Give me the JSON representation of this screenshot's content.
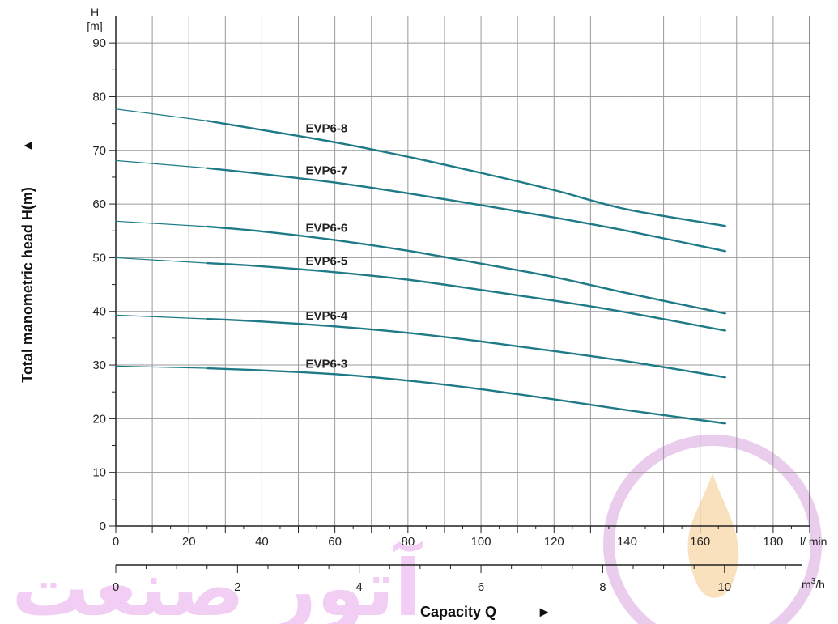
{
  "chart_data": {
    "type": "line",
    "ylabel": "Total manometric head H(m)",
    "ylabel_arrow": "▲",
    "y_unit_top": "H",
    "y_unit_bottom": "[m]",
    "xlabel": "Capacity Q",
    "xlabel_arrow": "►",
    "x_unit_primary": "l/ min",
    "x_unit_secondary_base": "m",
    "x_unit_secondary_exp": "3",
    "x_unit_secondary_tail": "/h",
    "xlim": [
      0,
      190
    ],
    "ylim": [
      0,
      95
    ],
    "x_ticks": [
      "0",
      "20",
      "40",
      "60",
      "80",
      "100",
      "120",
      "140",
      "160",
      "180"
    ],
    "x2_ticks": [
      "0",
      "2",
      "4",
      "6",
      "8",
      "10"
    ],
    "y_ticks": [
      "0",
      "10",
      "20",
      "30",
      "40",
      "50",
      "60",
      "70",
      "80",
      "90"
    ],
    "grid": true,
    "series_color": "#1e7a86",
    "series": [
      {
        "name": "EVP6-8",
        "x": [
          0,
          25,
          40,
          60,
          80,
          100,
          120,
          140,
          167
        ],
        "y": [
          77.7,
          75.5,
          73.8,
          71.5,
          68.8,
          65.8,
          62.6,
          59.0,
          55.9
        ]
      },
      {
        "name": "EVP6-7",
        "x": [
          0,
          25,
          40,
          60,
          80,
          100,
          120,
          140,
          167
        ],
        "y": [
          68.1,
          66.7,
          65.6,
          64.0,
          62.0,
          59.8,
          57.5,
          55.0,
          51.2
        ]
      },
      {
        "name": "EVP6-6",
        "x": [
          0,
          25,
          40,
          60,
          80,
          100,
          120,
          140,
          167
        ],
        "y": [
          56.8,
          55.8,
          54.9,
          53.3,
          51.3,
          48.9,
          46.4,
          43.4,
          39.6
        ]
      },
      {
        "name": "EVP6-5",
        "x": [
          0,
          25,
          40,
          60,
          80,
          100,
          120,
          140,
          167
        ],
        "y": [
          50.0,
          49.0,
          48.4,
          47.3,
          45.9,
          44.0,
          42.0,
          39.8,
          36.4
        ]
      },
      {
        "name": "EVP6-4",
        "x": [
          0,
          25,
          40,
          60,
          80,
          100,
          120,
          140,
          167
        ],
        "y": [
          39.3,
          38.6,
          38.1,
          37.2,
          36.0,
          34.4,
          32.6,
          30.7,
          27.7
        ]
      },
      {
        "name": "EVP6-3",
        "x": [
          0,
          25,
          40,
          60,
          80,
          100,
          120,
          140,
          167
        ],
        "y": [
          29.8,
          29.4,
          29.0,
          28.3,
          27.1,
          25.5,
          23.6,
          21.6,
          19.1
        ]
      }
    ],
    "watermark_text": "آتور صنعت"
  }
}
